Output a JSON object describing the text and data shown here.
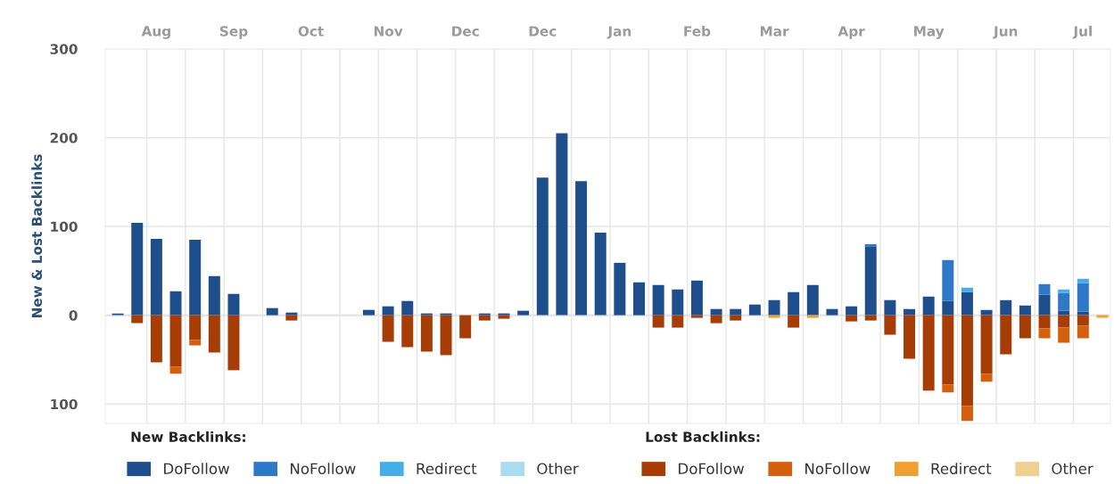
{
  "chart_data": {
    "type": "bar",
    "stacked": true,
    "ylabel": "New & Lost Backlinks",
    "categories": [
      null,
      null,
      "Aug",
      null,
      null,
      null,
      "Sep",
      null,
      null,
      null,
      "Oct",
      null,
      null,
      null,
      "Nov",
      null,
      null,
      null,
      "Dec",
      null,
      null,
      null,
      "Dec",
      null,
      null,
      null,
      "Jan",
      null,
      null,
      null,
      "Feb",
      null,
      null,
      null,
      "Mar",
      null,
      null,
      null,
      "Apr",
      null,
      null,
      null,
      "May",
      null,
      null,
      null,
      "Jun",
      null,
      null,
      null,
      "Jul",
      null
    ],
    "series": [
      {
        "name": "DoFollow",
        "color": "#1f4e8c",
        "values": [
          2,
          104,
          86,
          27,
          85,
          44,
          24,
          null,
          8,
          3,
          null,
          null,
          null,
          6,
          10,
          16,
          2,
          2,
          null,
          2,
          2,
          5,
          155,
          205,
          151,
          93,
          59,
          37,
          34,
          29,
          39,
          7,
          7,
          12,
          17,
          26,
          34,
          7,
          10,
          77,
          17,
          7,
          21,
          16,
          26,
          6,
          17,
          11,
          23,
          5,
          4,
          null
        ]
      },
      {
        "name": "NoFollow",
        "color": "#2f78c8",
        "values": [
          null,
          null,
          null,
          null,
          null,
          null,
          null,
          null,
          null,
          null,
          null,
          null,
          null,
          null,
          null,
          null,
          null,
          null,
          null,
          null,
          null,
          null,
          null,
          null,
          null,
          null,
          null,
          null,
          null,
          null,
          null,
          null,
          null,
          null,
          null,
          null,
          null,
          null,
          null,
          3,
          null,
          null,
          null,
          46,
          null,
          null,
          null,
          null,
          12,
          20,
          32,
          null
        ]
      },
      {
        "name": "Redirect",
        "color": "#45aee8",
        "values": [
          null,
          null,
          null,
          null,
          null,
          null,
          null,
          null,
          null,
          null,
          null,
          null,
          null,
          null,
          null,
          null,
          null,
          null,
          null,
          null,
          null,
          null,
          null,
          null,
          null,
          null,
          null,
          null,
          null,
          null,
          null,
          null,
          null,
          null,
          null,
          null,
          null,
          null,
          null,
          null,
          null,
          null,
          null,
          null,
          5,
          null,
          null,
          null,
          null,
          4,
          5,
          null
        ]
      },
      {
        "name": "Other",
        "color": "#a8dcf0",
        "values": [
          null,
          null,
          null,
          null,
          null,
          null,
          null,
          null,
          null,
          null,
          null,
          null,
          null,
          null,
          null,
          null,
          null,
          null,
          null,
          null,
          null,
          null,
          null,
          null,
          null,
          null,
          null,
          null,
          null,
          null,
          null,
          null,
          null,
          null,
          null,
          null,
          null,
          null,
          null,
          null,
          null,
          null,
          null,
          null,
          null,
          null,
          null,
          null,
          null,
          null,
          null,
          null
        ]
      },
      {
        "name": "DoFollow",
        "color": "#a63c06",
        "values": [
          null,
          -9,
          -53,
          -58,
          -28,
          -42,
          -62,
          null,
          null,
          -6,
          null,
          null,
          null,
          null,
          -30,
          -36,
          -41,
          -45,
          -26,
          -6,
          -4,
          null,
          null,
          null,
          null,
          null,
          null,
          null,
          -14,
          -14,
          -3,
          -9,
          -6,
          null,
          null,
          -14,
          null,
          null,
          -7,
          -6,
          -22,
          -49,
          -85,
          -78,
          -102,
          -66,
          -44,
          -26,
          -15,
          -14,
          -12,
          null
        ]
      },
      {
        "name": "NoFollow",
        "color": "#d45f0c",
        "values": [
          null,
          null,
          null,
          -8,
          -6,
          null,
          null,
          null,
          null,
          null,
          null,
          null,
          null,
          null,
          null,
          null,
          null,
          null,
          null,
          null,
          null,
          null,
          null,
          null,
          null,
          null,
          null,
          null,
          null,
          null,
          null,
          null,
          null,
          null,
          null,
          null,
          null,
          null,
          null,
          null,
          null,
          null,
          null,
          -9,
          -17,
          -9,
          null,
          null,
          -11,
          -17,
          -14,
          null
        ]
      },
      {
        "name": "Redirect",
        "color": "#f0a030",
        "values": [
          null,
          null,
          null,
          null,
          null,
          null,
          null,
          null,
          null,
          null,
          null,
          null,
          null,
          null,
          null,
          null,
          null,
          null,
          null,
          null,
          null,
          null,
          null,
          null,
          null,
          null,
          null,
          null,
          null,
          null,
          null,
          null,
          null,
          null,
          -3,
          null,
          -3,
          null,
          null,
          null,
          null,
          null,
          null,
          null,
          null,
          null,
          null,
          null,
          null,
          null,
          null,
          -3
        ]
      },
      {
        "name": "Other",
        "color": "#f0d090",
        "values": [
          null,
          null,
          null,
          null,
          null,
          null,
          null,
          null,
          null,
          null,
          null,
          null,
          null,
          null,
          null,
          null,
          null,
          null,
          null,
          null,
          null,
          null,
          null,
          null,
          null,
          null,
          null,
          null,
          null,
          null,
          null,
          null,
          null,
          null,
          null,
          null,
          null,
          null,
          null,
          null,
          null,
          null,
          null,
          null,
          null,
          null,
          null,
          null,
          null,
          null,
          null,
          null
        ]
      }
    ],
    "ylim": [
      -122,
      300
    ],
    "yticks": [
      {
        "value": -100,
        "label": "100"
      },
      0,
      100,
      200,
      300
    ],
    "grid": true,
    "legend": "bottom",
    "annotations": [
      "New Backlinks:",
      "Lost Backlinks:"
    ]
  }
}
